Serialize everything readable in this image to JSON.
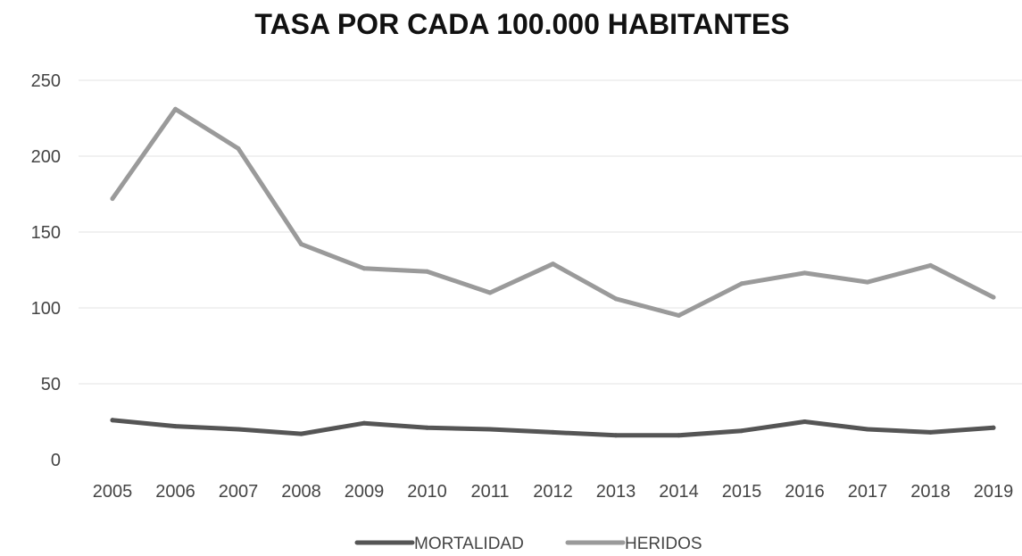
{
  "chart_data": {
    "type": "line",
    "title": "TASA POR CADA 100.000 HABITANTES",
    "xlabel": "",
    "ylabel": "",
    "categories": [
      "2005",
      "2006",
      "2007",
      "2008",
      "2009",
      "2010",
      "2011",
      "2012",
      "2013",
      "2014",
      "2015",
      "2016",
      "2017",
      "2018",
      "2019"
    ],
    "y_ticks": [
      "0",
      "50",
      "100",
      "150",
      "200",
      "250"
    ],
    "ylim": [
      0,
      250
    ],
    "grid": true,
    "legend_position": "bottom",
    "series": [
      {
        "name": "MORTALIDAD",
        "color": "#555555",
        "values": [
          26,
          22,
          20,
          17,
          24,
          21,
          20,
          18,
          16,
          16,
          19,
          25,
          20,
          18,
          21
        ]
      },
      {
        "name": "HERIDOS",
        "color": "#9a9a9a",
        "values": [
          172,
          231,
          205,
          142,
          126,
          124,
          110,
          129,
          106,
          95,
          116,
          123,
          117,
          128,
          107
        ]
      }
    ]
  }
}
